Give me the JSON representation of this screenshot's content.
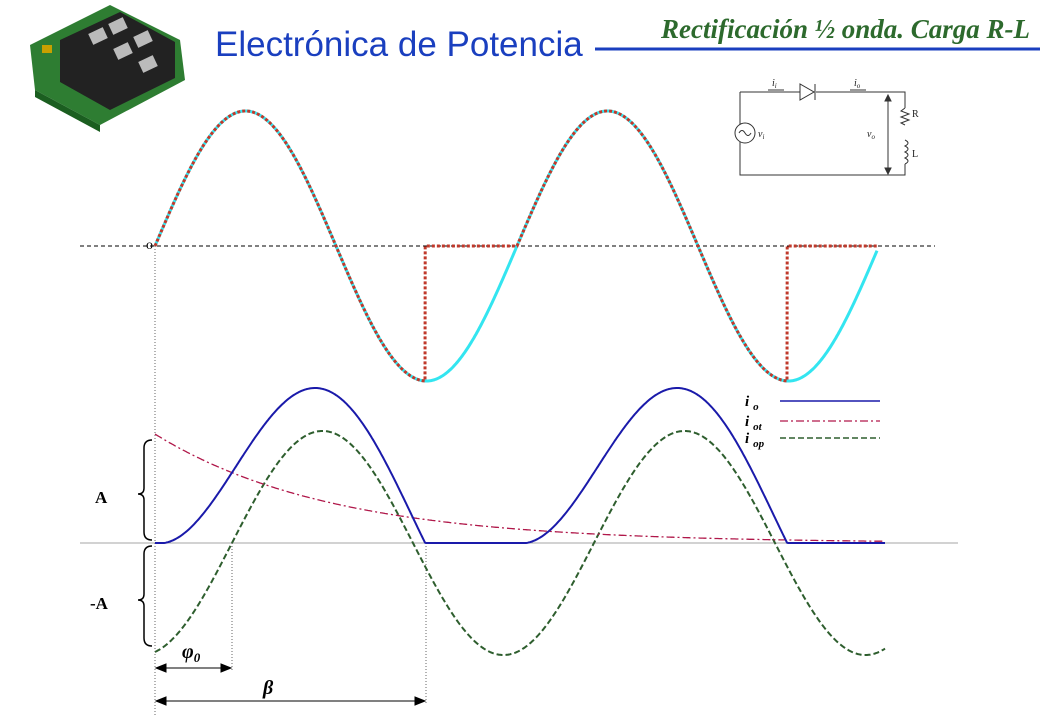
{
  "header": {
    "title": "Electrónica de Potencia",
    "slide_title": "Rectificación ½ onda. Carga R-L"
  },
  "voltage_plot": {
    "origin_label": "o"
  },
  "current_plot": {
    "amplitude_label": "A",
    "negative_amplitude_label": "-A",
    "phase_label": {
      "symbol": "φ",
      "subscript": "0"
    },
    "extinction_label": "β",
    "legend": [
      {
        "symbol": "i",
        "subscript": "o"
      },
      {
        "symbol": "i",
        "subscript": "ot"
      },
      {
        "symbol": "i",
        "subscript": "op"
      }
    ]
  },
  "circuit": {
    "input_current": {
      "symbol": "i",
      "subscript": "i"
    },
    "output_current": {
      "symbol": "i",
      "subscript": "o"
    },
    "input_voltage": {
      "symbol": "v",
      "subscript": "i"
    },
    "output_voltage": {
      "symbol": "v",
      "subscript": "o"
    },
    "resistor": "R",
    "inductor": "L"
  }
}
